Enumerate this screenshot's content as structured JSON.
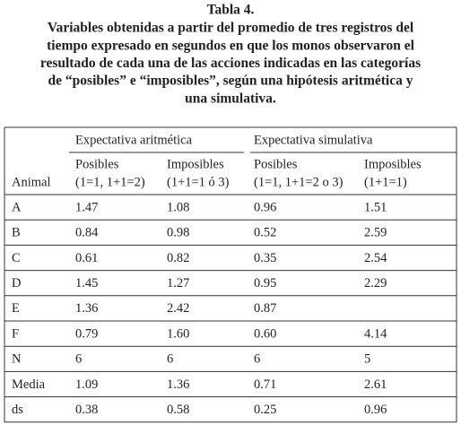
{
  "caption": {
    "title": "Tabla 4.",
    "lines": [
      "Variables obtenidas a partir del promedio de tres registros del",
      "tiempo expresado en segundos en que los monos observaron el",
      "resultado de cada una de las acciones indicadas en las categorías",
      "de “posibles” e “imposibles”, según una hipótesis aritmética y",
      "una simulativa."
    ]
  },
  "table": {
    "groups": [
      "Expectativa aritmética",
      "Expectativa simulativa"
    ],
    "row_header": "Animal",
    "columns": [
      [
        "Posibles",
        "(1=1, 1+1=2)"
      ],
      [
        "Imposibles",
        "(1+1=1 ó 3)"
      ],
      [
        "Posibles",
        "(1=1, 1+1=2 o 3)"
      ],
      [
        "Imposibles",
        "(1+1=1)"
      ]
    ],
    "rows": [
      [
        "A",
        "1.47",
        "1.08",
        "0.96",
        "1.51"
      ],
      [
        "B",
        "0.84",
        "0.98",
        "0.52",
        "2.59"
      ],
      [
        "C",
        "0.61",
        "0.82",
        "0.35",
        "2.54"
      ],
      [
        "D",
        "1.45",
        "1.27",
        "0.95",
        "2.29"
      ],
      [
        "E",
        "1.36",
        "2.42",
        "0.87",
        null
      ],
      [
        "F",
        "0.79",
        "1.60",
        "0.60",
        "4.14"
      ],
      [
        "N",
        "6",
        "6",
        "6",
        "5"
      ],
      [
        "Media",
        "1.09",
        "1.36",
        "0.71",
        "2.61"
      ],
      [
        "ds",
        "0.38",
        "0.58",
        "0.25",
        "0.96"
      ]
    ]
  }
}
